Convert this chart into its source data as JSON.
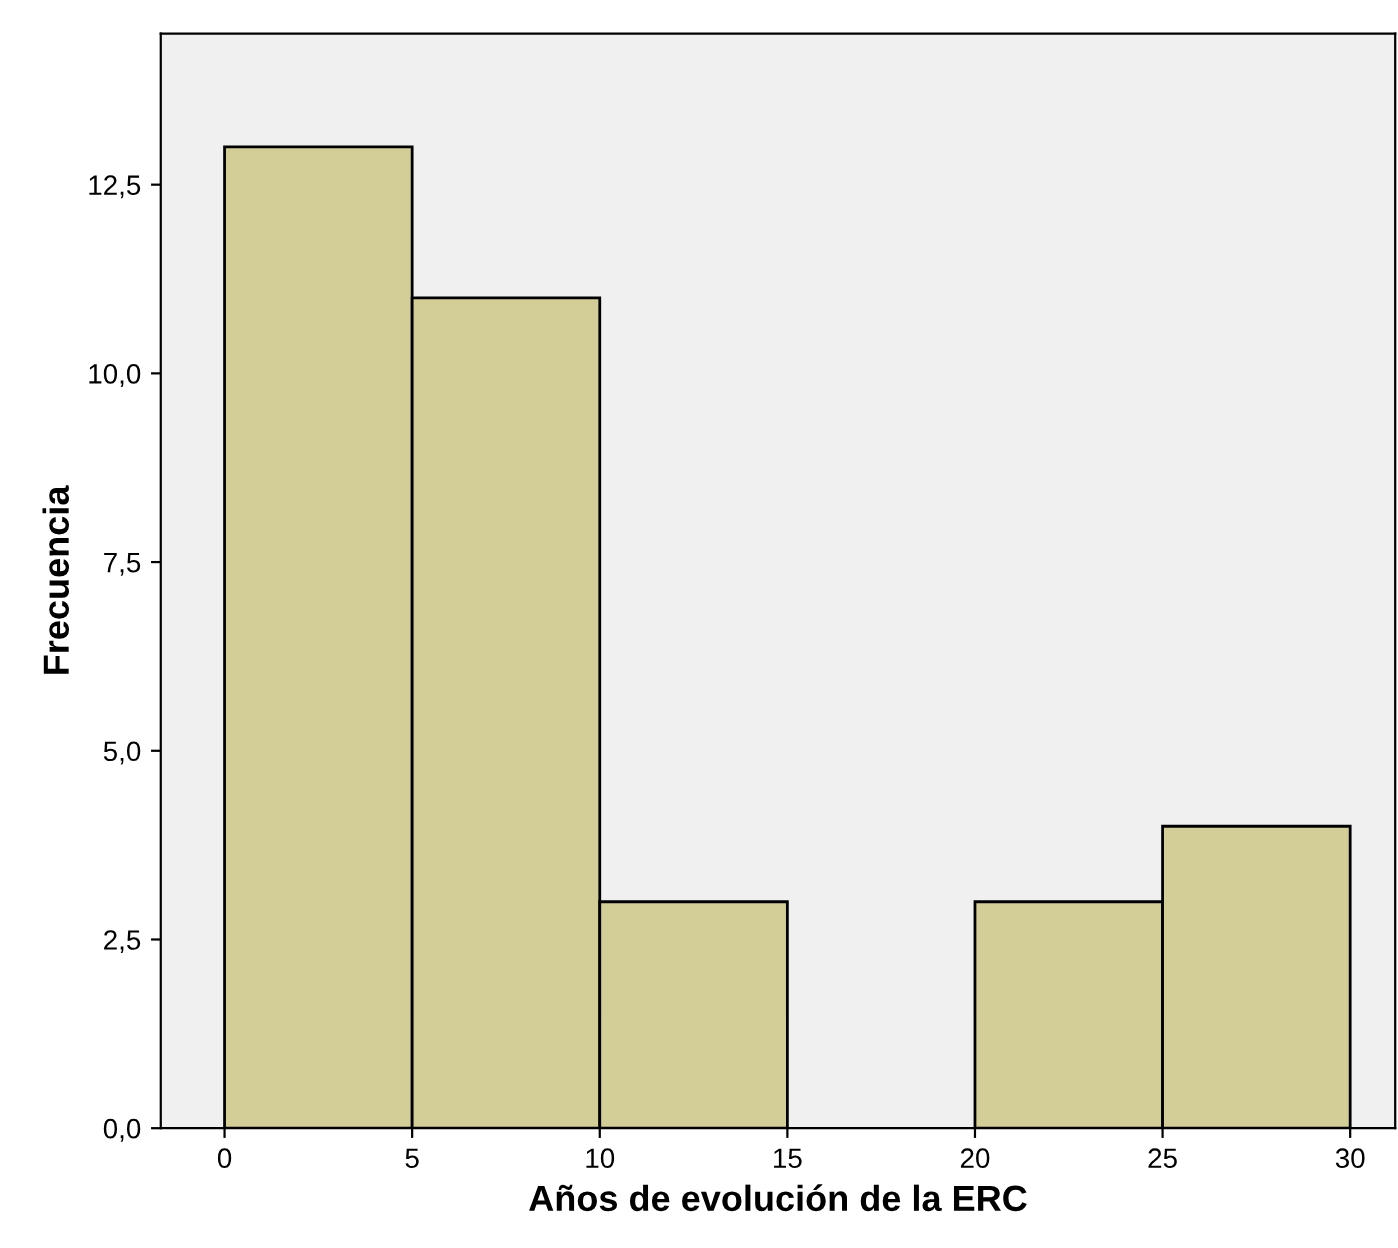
{
  "chart_data": {
    "type": "histogram",
    "xlabel": "Años de evolución de la ERC",
    "ylabel": "Frecuencia",
    "bins": [
      0,
      5,
      10,
      15,
      20,
      25,
      30
    ],
    "values": [
      13,
      11,
      3,
      0,
      3,
      4
    ],
    "color": "#d3ce97",
    "xlim": [
      -1.7,
      31.2
    ],
    "ylim": [
      0,
      14.5
    ],
    "xticks": [
      0,
      5,
      10,
      15,
      20,
      25,
      30
    ],
    "yticks": [
      {
        "value": 0,
        "label": "0,0"
      },
      {
        "value": 2.5,
        "label": "2,5"
      },
      {
        "value": 5,
        "label": "5,0"
      },
      {
        "value": 7.5,
        "label": "7,5"
      },
      {
        "value": 10,
        "label": "10,0"
      },
      {
        "value": 12.5,
        "label": "12,5"
      }
    ],
    "grid": false
  }
}
